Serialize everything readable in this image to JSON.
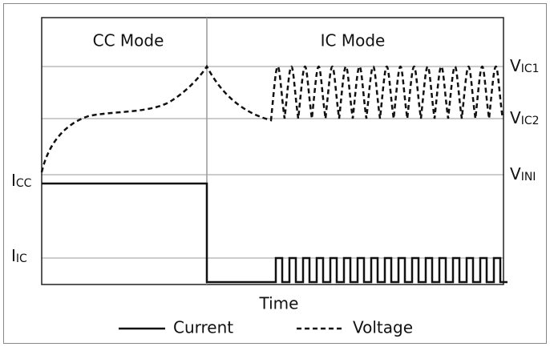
{
  "modes": [
    "CC Mode",
    "IC Mode"
  ],
  "right_labels": [
    {
      "main": "V",
      "sub": "IC1"
    },
    {
      "main": "V",
      "sub": "IC2"
    },
    {
      "main": "V",
      "sub": "INI"
    }
  ],
  "left_labels": [
    {
      "main": "I",
      "sub": "CC"
    },
    {
      "main": "I",
      "sub": "IC"
    }
  ],
  "x_label": "Time",
  "legend": [
    "Current",
    "Voltage"
  ]
}
